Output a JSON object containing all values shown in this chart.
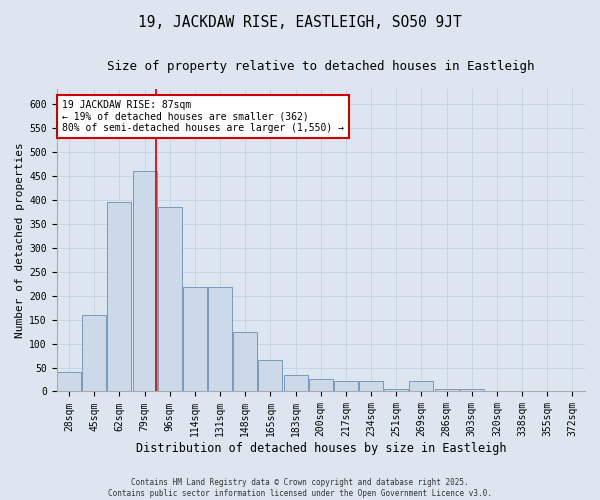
{
  "title": "19, JACKDAW RISE, EASTLEIGH, SO50 9JT",
  "subtitle": "Size of property relative to detached houses in Eastleigh",
  "xlabel": "Distribution of detached houses by size in Eastleigh",
  "ylabel": "Number of detached properties",
  "categories": [
    "28sqm",
    "45sqm",
    "62sqm",
    "79sqm",
    "96sqm",
    "114sqm",
    "131sqm",
    "148sqm",
    "165sqm",
    "183sqm",
    "200sqm",
    "217sqm",
    "234sqm",
    "251sqm",
    "269sqm",
    "286sqm",
    "303sqm",
    "320sqm",
    "338sqm",
    "355sqm",
    "372sqm"
  ],
  "values": [
    40,
    160,
    395,
    460,
    385,
    218,
    218,
    125,
    65,
    35,
    25,
    22,
    22,
    5,
    22,
    5,
    5,
    0,
    0,
    0,
    0
  ],
  "bar_color": "#ccd9e8",
  "bar_edge_color": "#7799bb",
  "grid_color": "#c8d4e4",
  "background_color": "#dde6f0",
  "annotation_line1": "19 JACKDAW RISE: 87sqm",
  "annotation_line2": "← 19% of detached houses are smaller (362)",
  "annotation_line3": "80% of semi-detached houses are larger (1,550) →",
  "annotation_box_facecolor": "#ffffff",
  "annotation_box_edge": "#cc0000",
  "red_line_color": "#cc0000",
  "ylim": [
    0,
    630
  ],
  "yticks": [
    0,
    50,
    100,
    150,
    200,
    250,
    300,
    350,
    400,
    450,
    500,
    550,
    600
  ],
  "footer": "Contains HM Land Registry data © Crown copyright and database right 2025.\nContains public sector information licensed under the Open Government Licence v3.0.",
  "title_fontsize": 10.5,
  "subtitle_fontsize": 9,
  "xlabel_fontsize": 8.5,
  "ylabel_fontsize": 8,
  "tick_fontsize": 7,
  "annotation_fontsize": 7,
  "footer_fontsize": 5.5
}
